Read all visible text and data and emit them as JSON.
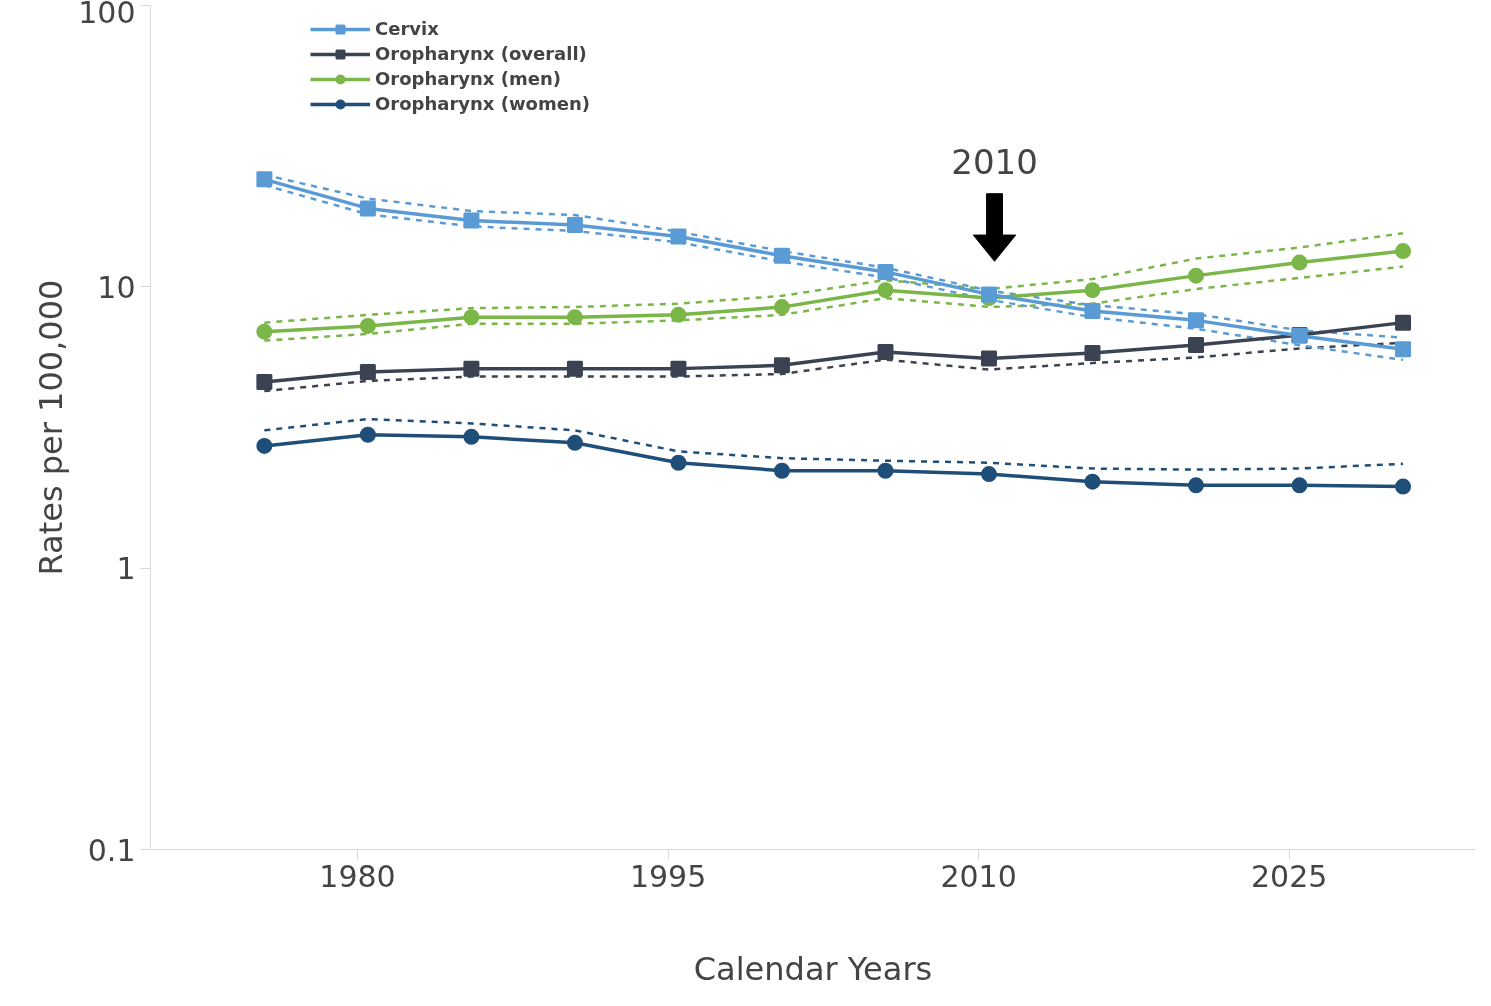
{
  "chart_data": {
    "type": "line",
    "xlabel": "Calendar Years",
    "ylabel": "Rates per 100,000",
    "log": "y",
    "x": [
      1975.5,
      1980.5,
      1985.5,
      1990.5,
      1995.5,
      2000.5,
      2005.5,
      2010.5,
      2015.5,
      2020.5,
      2025.5,
      2030.5
    ],
    "xlim": [
      1970,
      2034
    ],
    "xticks": [
      1980,
      1995,
      2010,
      2025
    ],
    "ylim": [
      0.1,
      100
    ],
    "yticks": [
      0.1,
      1,
      10,
      100
    ],
    "grid": false,
    "legend": "top left",
    "line_style": "solid",
    "series": [
      {
        "name": "Cervix",
        "color": "#5b9bd5",
        "marker": "square",
        "values": [
          24.1,
          19.0,
          17.2,
          16.6,
          15.1,
          12.9,
          11.3,
          9.4,
          8.2,
          7.6,
          6.7,
          6.0
        ]
      },
      {
        "name": "Oropharynx (overall)",
        "color": "#3b4352",
        "marker": "square",
        "values": [
          4.59,
          4.98,
          5.12,
          5.12,
          5.12,
          5.26,
          5.87,
          5.56,
          5.82,
          6.21,
          6.74,
          7.46
        ]
      },
      {
        "name": "Oropharynx (men)",
        "color": "#7ab648",
        "marker": "circle",
        "values": [
          6.93,
          7.26,
          7.8,
          7.8,
          7.95,
          8.47,
          9.73,
          9.12,
          9.73,
          10.96,
          12.2,
          13.4
        ]
      },
      {
        "name": "Oropharynx (women)",
        "color": "#1f4e79",
        "marker": "circle",
        "values": [
          2.72,
          2.98,
          2.93,
          2.79,
          2.37,
          2.22,
          2.22,
          2.16,
          2.03,
          1.97,
          1.97,
          1.95
        ]
      },
      {
        "color": "#5b9bd5",
        "line_style": "dashed",
        "marker": "none",
        "values": [
          23.0,
          18.1,
          16.4,
          15.8,
          14.4,
          12.3,
          10.8,
          9.0,
          7.8,
          7.1,
          6.2,
          5.5
        ]
      },
      {
        "color": "#5b9bd5",
        "line_style": "dashed",
        "marker": "none",
        "values": [
          25.0,
          20.6,
          18.6,
          18.0,
          15.7,
          13.4,
          11.7,
          9.7,
          8.6,
          8.0,
          7.0,
          6.6
        ]
      },
      {
        "color": "#3b4352",
        "line_style": "dashed",
        "marker": "none",
        "values": [
          4.26,
          4.63,
          4.8,
          4.8,
          4.8,
          4.9,
          5.51,
          5.08,
          5.36,
          5.61,
          6.04,
          6.33
        ]
      },
      {
        "color": "#7ab648",
        "line_style": "dashed",
        "marker": "none",
        "values": [
          6.44,
          6.8,
          7.39,
          7.39,
          7.6,
          7.95,
          9.12,
          8.48,
          8.71,
          9.82,
          10.76,
          11.8
        ]
      },
      {
        "color": "#7ab648",
        "line_style": "dashed",
        "marker": "none",
        "values": [
          7.46,
          7.95,
          8.4,
          8.48,
          8.71,
          9.29,
          10.57,
          9.82,
          10.66,
          12.6,
          13.8,
          15.5
        ]
      },
      {
        "color": "#1f4e79",
        "line_style": "dashed",
        "marker": "none",
        "values": [
          3.09,
          3.39,
          3.27,
          3.09,
          2.6,
          2.46,
          2.41,
          2.37,
          2.26,
          2.24,
          2.26,
          2.35
        ]
      }
    ],
    "annotations": [
      "2010"
    ]
  }
}
